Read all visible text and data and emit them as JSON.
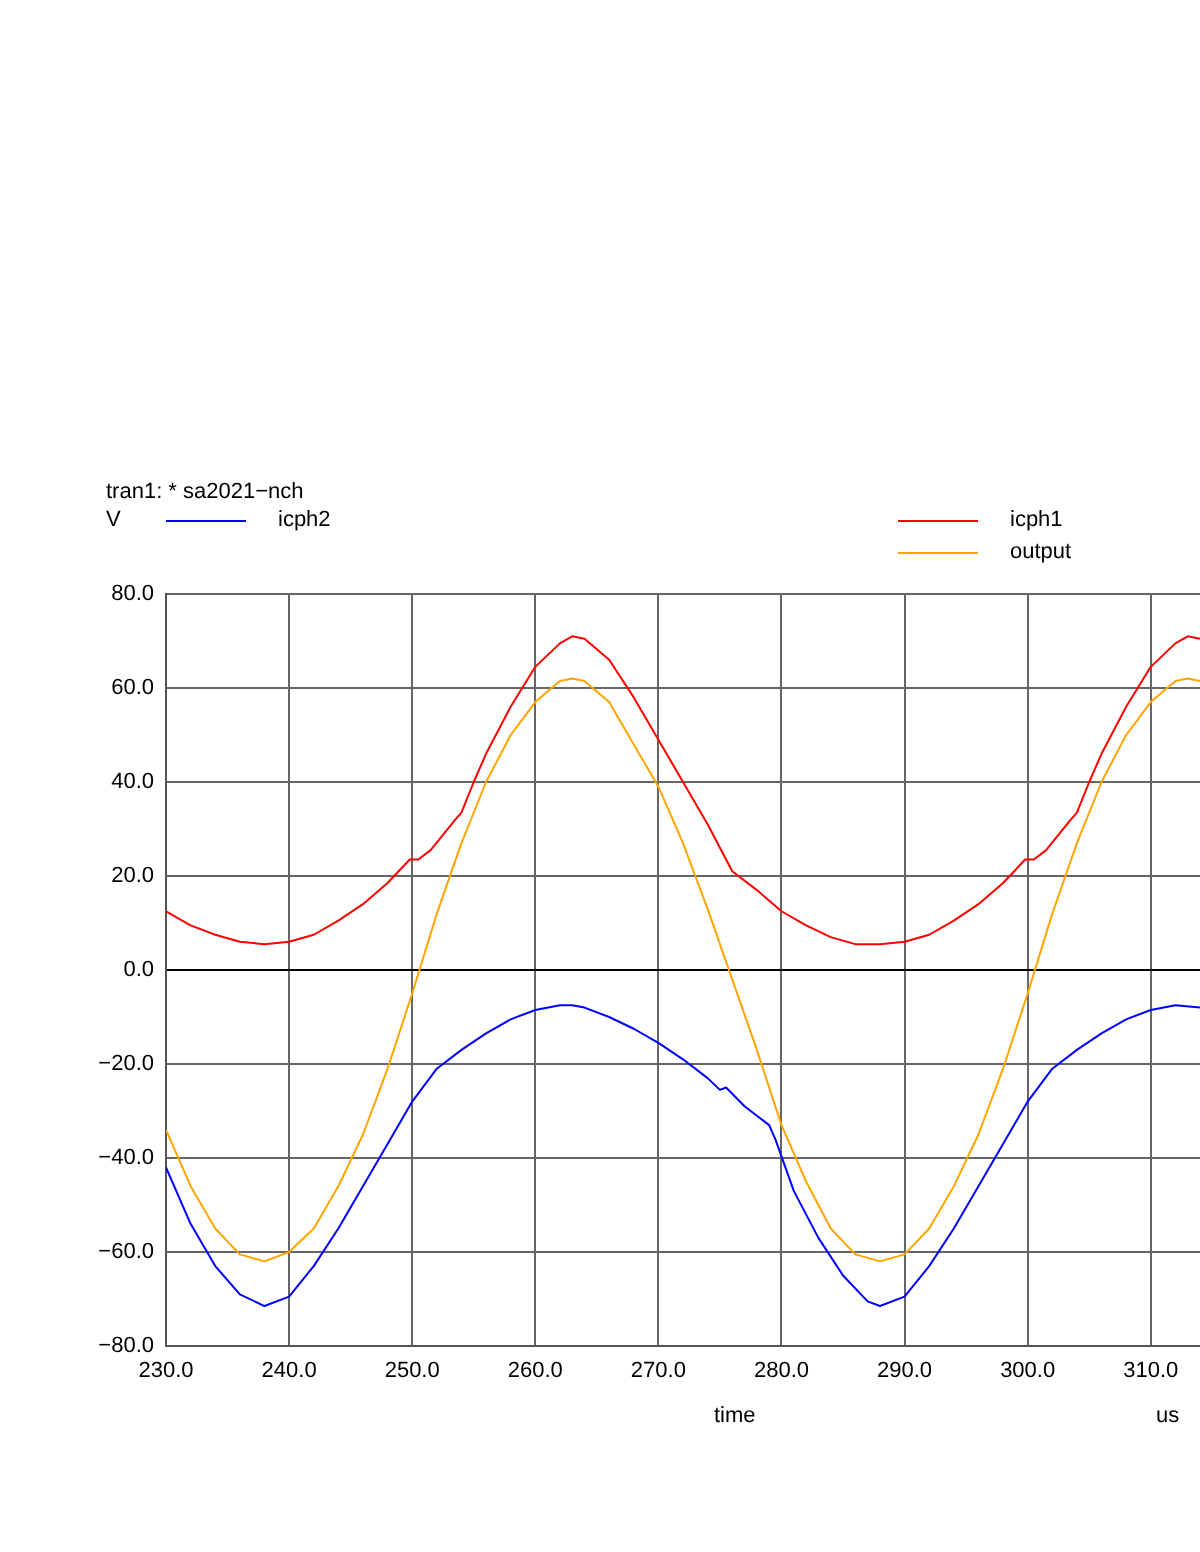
{
  "chart_data": {
    "type": "line",
    "title": "tran1: * sa2021−nch",
    "ylabel": "V",
    "xlabel": "time",
    "annotations": [
      "us"
    ],
    "xlim": [
      230,
      314
    ],
    "ylim": [
      -80,
      80
    ],
    "xticks": [
      {
        "value": 230,
        "label": "230.0"
      },
      {
        "value": 240,
        "label": "240.0"
      },
      {
        "value": 250,
        "label": "250.0"
      },
      {
        "value": 260,
        "label": "260.0"
      },
      {
        "value": 270,
        "label": "270.0"
      },
      {
        "value": 280,
        "label": "280.0"
      },
      {
        "value": 290,
        "label": "290.0"
      },
      {
        "value": 300,
        "label": "300.0"
      },
      {
        "value": 310,
        "label": "310.0"
      }
    ],
    "yticks": [
      {
        "value": -80,
        "label": "−80.0"
      },
      {
        "value": -60,
        "label": "−60.0"
      },
      {
        "value": -40,
        "label": "−40.0"
      },
      {
        "value": -20,
        "label": "−20.0"
      },
      {
        "value": 0,
        "label": "0.0"
      },
      {
        "value": 20,
        "label": "20.0"
      },
      {
        "value": 40,
        "label": "40.0"
      },
      {
        "value": 60,
        "label": "60.0"
      },
      {
        "value": 80,
        "label": "80.0"
      }
    ],
    "grid": true,
    "legend": "top",
    "marker": "none",
    "line_style": "solid",
    "series": [
      {
        "name": "icph2",
        "color": "#0000ff",
        "x": [
          230,
          232,
          234,
          236,
          238,
          240,
          242,
          244,
          246,
          248,
          250,
          252,
          254,
          256,
          258,
          260,
          262,
          263,
          264,
          266,
          268,
          270,
          272,
          274,
          275,
          275.5,
          277,
          279,
          279.5,
          281,
          283,
          285,
          287,
          288,
          290,
          292,
          294,
          296,
          298,
          300,
          302,
          304,
          306,
          308,
          310,
          312,
          314
        ],
        "values": [
          -42,
          -54,
          -63,
          -69,
          -71.5,
          -69.5,
          -63,
          -55,
          -46,
          -37,
          -28,
          -21,
          -17,
          -13.5,
          -10.5,
          -8.5,
          -7.5,
          -7.5,
          -8,
          -10,
          -12.5,
          -15.5,
          -19,
          -23,
          -25.5,
          -25,
          -29,
          -33,
          -36,
          -47,
          -57,
          -65,
          -70.5,
          -71.5,
          -69.5,
          -63,
          -55,
          -46,
          -37,
          -28,
          -21,
          -17,
          -13.5,
          -10.5,
          -8.5,
          -7.5,
          -8
        ]
      },
      {
        "name": "icph1",
        "color": "#ff0000",
        "x": [
          230,
          232,
          234,
          236,
          238,
          240,
          242,
          244,
          246,
          248,
          249.8,
          250.5,
          251.5,
          253.5,
          254,
          255,
          256,
          258,
          260,
          262,
          263,
          264,
          266,
          268,
          270,
          272,
          274,
          276,
          278,
          280,
          282,
          284,
          286,
          288,
          290,
          292,
          294,
          296,
          298,
          299.8,
          300.5,
          301.5,
          303.5,
          304,
          305,
          306,
          308,
          310,
          312,
          313,
          314
        ],
        "values": [
          12.5,
          9.5,
          7.5,
          6,
          5.5,
          6,
          7.5,
          10.5,
          14,
          18.5,
          23.5,
          23.5,
          25.5,
          32,
          33.5,
          40,
          46,
          56,
          64.5,
          69.5,
          71,
          70.5,
          66,
          58,
          49,
          40,
          31,
          21,
          17,
          12.5,
          9.5,
          7,
          5.5,
          5.5,
          6,
          7.5,
          10.5,
          14,
          18.5,
          23.5,
          23.5,
          25.5,
          32,
          33.5,
          40,
          46,
          56,
          64.5,
          69.5,
          71,
          70.5
        ]
      },
      {
        "name": "output",
        "color": "#ffa500",
        "x": [
          230,
          232,
          234,
          236,
          238,
          240,
          242,
          244,
          246,
          248,
          250,
          252,
          254,
          256,
          258,
          260,
          262,
          263,
          264,
          266,
          268,
          270,
          272,
          274,
          276,
          278,
          280,
          282,
          284,
          286,
          288,
          290,
          292,
          294,
          296,
          298,
          300,
          302,
          304,
          306,
          308,
          310,
          312,
          313,
          314
        ],
        "values": [
          -34,
          -46,
          -55,
          -60.5,
          -62,
          -60,
          -55,
          -46,
          -35,
          -21,
          -5,
          12,
          27,
          40,
          50,
          57,
          61.5,
          62,
          61.5,
          57,
          48,
          39,
          27,
          13,
          -2,
          -17,
          -33,
          -45,
          -55,
          -60.5,
          -62,
          -60.5,
          -55,
          -46,
          -35,
          -21,
          -5,
          12,
          27,
          40,
          50,
          57,
          61.5,
          62,
          61.5
        ]
      }
    ]
  }
}
